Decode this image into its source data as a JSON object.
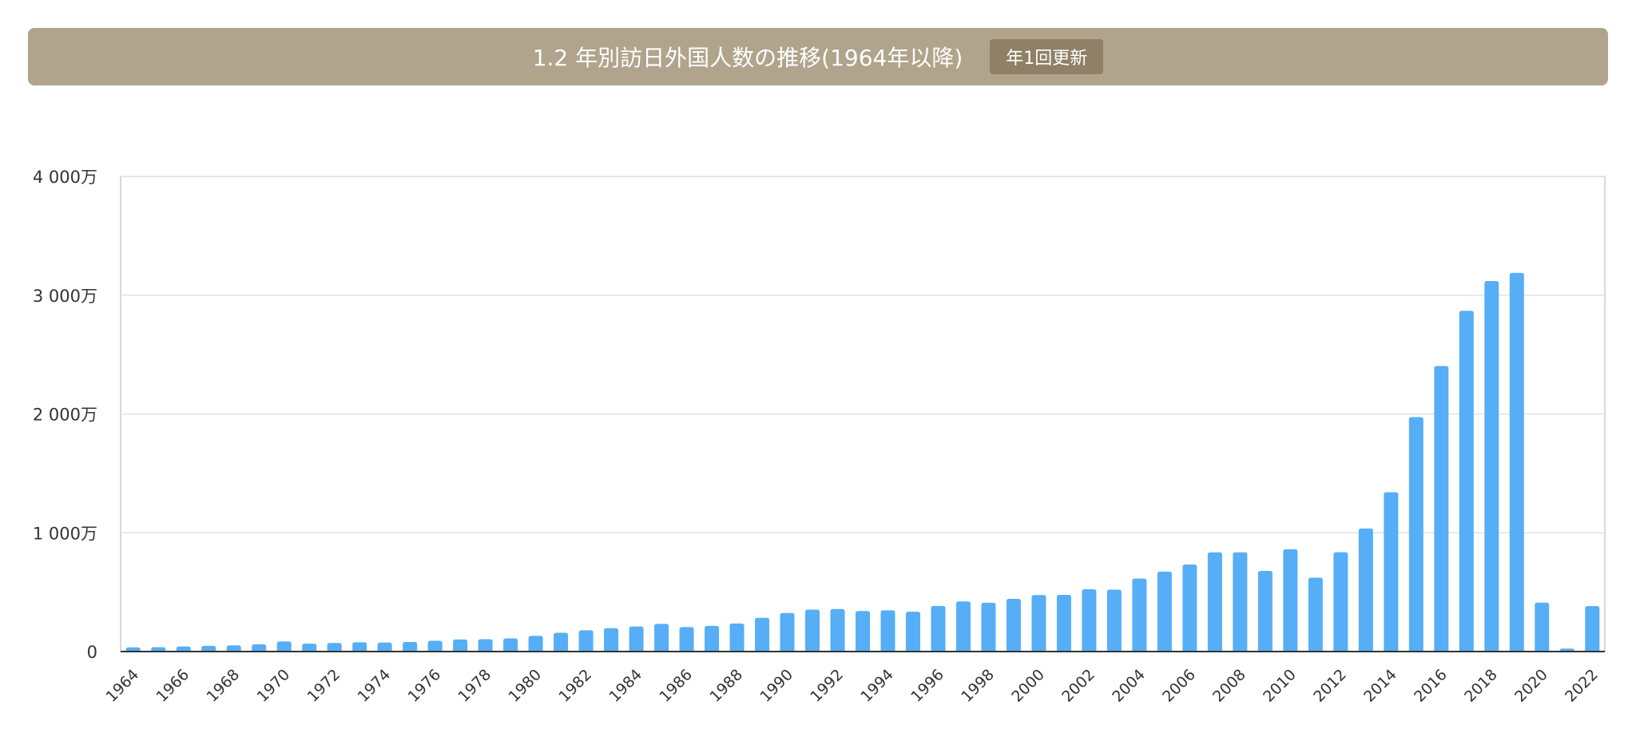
{
  "header": {
    "title": "1.2 年別訪日外国人数の推移(1964年以降)",
    "badge": "年1回更新"
  },
  "colors": {
    "header_bg": "#b0a48c",
    "badge_bg": "#8f8066",
    "bar": "#56aef7"
  },
  "chart_data": {
    "type": "bar",
    "title": "",
    "xlabel": "",
    "ylabel": "",
    "ylim": [
      0,
      40000000
    ],
    "yticks": [
      {
        "value": 0,
        "label": "0"
      },
      {
        "value": 10000000,
        "label": "1 000万"
      },
      {
        "value": 20000000,
        "label": "2 000万"
      },
      {
        "value": 30000000,
        "label": "3 000万"
      },
      {
        "value": 40000000,
        "label": "4 000万"
      }
    ],
    "grid": true,
    "categories": [
      1964,
      1965,
      1966,
      1967,
      1968,
      1969,
      1970,
      1971,
      1972,
      1973,
      1974,
      1975,
      1976,
      1977,
      1978,
      1979,
      1980,
      1981,
      1982,
      1983,
      1984,
      1985,
      1986,
      1987,
      1988,
      1989,
      1990,
      1991,
      1992,
      1993,
      1994,
      1995,
      1996,
      1997,
      1998,
      1999,
      2000,
      2001,
      2002,
      2003,
      2004,
      2005,
      2006,
      2007,
      2008,
      2009,
      2010,
      2011,
      2012,
      2013,
      2014,
      2015,
      2016,
      2017,
      2018,
      2019,
      2020,
      2021,
      2022
    ],
    "x_tick_labels_every": 2,
    "values": [
      350000,
      370000,
      430000,
      480000,
      520000,
      610000,
      850000,
      660000,
      720000,
      780000,
      760000,
      810000,
      910000,
      1020000,
      1040000,
      1110000,
      1320000,
      1580000,
      1790000,
      1970000,
      2110000,
      2330000,
      2060000,
      2160000,
      2360000,
      2840000,
      3240000,
      3530000,
      3580000,
      3410000,
      3470000,
      3350000,
      3840000,
      4220000,
      4110000,
      4440000,
      4760000,
      4770000,
      5240000,
      5210000,
      6140000,
      6730000,
      7330000,
      8350000,
      8350000,
      6790000,
      8610000,
      6220000,
      8360000,
      10360000,
      13410000,
      19740000,
      24040000,
      28690000,
      31190000,
      31880000,
      4120000,
      250000,
      3830000
    ]
  }
}
